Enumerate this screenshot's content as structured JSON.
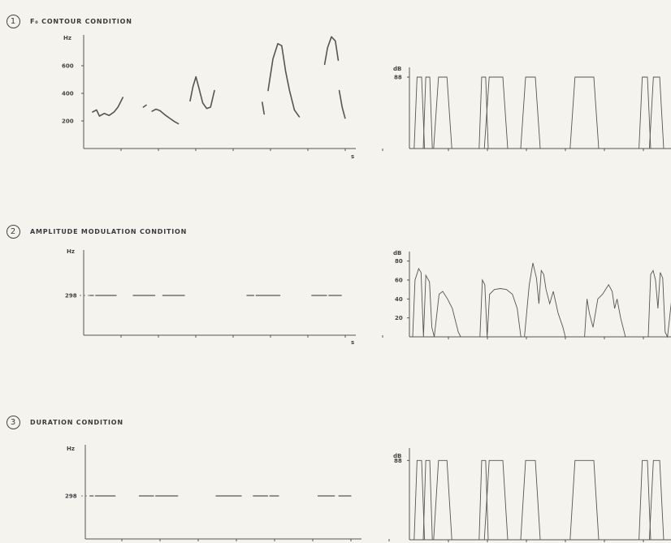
{
  "sections": [
    {
      "num": "1",
      "title": "F₀ CONTOUR CONDITION"
    },
    {
      "num": "2",
      "title": "AMPLITUDE MODULATION CONDITION"
    },
    {
      "num": "3",
      "title": "DURATION CONDITION"
    }
  ],
  "labels": {
    "hz": "Hz",
    "db": "dB",
    "s": "s"
  },
  "chart_data": [
    {
      "type": "line",
      "ylabel": "Hz",
      "xlabel": "s",
      "yticks": [
        200,
        400,
        600
      ],
      "ytick_labels": [
        "200",
        "400",
        "600"
      ],
      "ylim": [
        0,
        800
      ],
      "segments": [
        {
          "x": [
            0.05,
            0.09,
            0.12,
            0.17,
            0.22,
            0.27,
            0.31,
            0.36
          ],
          "y": [
            265,
            280,
            235,
            255,
            240,
            265,
            300,
            370
          ]
        },
        {
          "x": [
            0.57,
            0.6
          ],
          "y": [
            300,
            315
          ]
        },
        {
          "x": [
            0.66,
            0.7,
            0.74,
            0.79,
            0.84,
            0.89,
            0.93
          ],
          "y": [
            270,
            285,
            275,
            245,
            220,
            195,
            180
          ]
        },
        {
          "x": [
            1.05,
            1.08,
            1.11,
            1.14,
            1.18,
            1.22,
            1.26,
            1.3
          ],
          "y": [
            345,
            450,
            520,
            440,
            330,
            290,
            300,
            420
          ]
        },
        {
          "x": [
            1.79,
            1.81
          ],
          "y": [
            335,
            250
          ]
        },
        {
          "x": [
            1.85,
            1.9,
            1.95,
            1.99,
            2.03,
            2.07,
            2.12,
            2.17
          ],
          "y": [
            420,
            650,
            760,
            745,
            560,
            420,
            280,
            230
          ]
        },
        {
          "x": [
            2.43,
            2.46,
            2.5,
            2.54,
            2.57
          ],
          "y": [
            610,
            730,
            810,
            780,
            640
          ]
        },
        {
          "x": [
            2.58,
            2.61,
            2.64
          ],
          "y": [
            420,
            300,
            220
          ]
        }
      ]
    },
    {
      "type": "area",
      "ylabel": "dB",
      "ytick_labels": [
        "88"
      ],
      "level": 88,
      "ylim": [
        0,
        100
      ],
      "pulses": [
        [
          0.03,
          0.11
        ],
        [
          0.1,
          0.17
        ],
        [
          0.18,
          0.32
        ],
        [
          0.53,
          0.6
        ],
        [
          0.57,
          0.75
        ],
        [
          0.85,
          1.0
        ],
        [
          1.23,
          1.45
        ],
        [
          1.76,
          1.85
        ],
        [
          1.84,
          1.95
        ]
      ]
    },
    {
      "type": "line",
      "ylabel": "Hz",
      "xlabel": "s",
      "level_label": "298",
      "value": 298,
      "segments": [
        [
          0.02,
          0.05
        ],
        [
          0.07,
          0.25
        ],
        [
          0.4,
          0.59
        ],
        [
          0.66,
          0.85
        ],
        [
          1.4,
          1.46
        ],
        [
          1.48,
          1.69
        ],
        [
          1.97,
          2.1
        ],
        [
          2.12,
          2.23
        ]
      ]
    },
    {
      "type": "line",
      "ylabel": "dB",
      "yticks": [
        20,
        40,
        60,
        80
      ],
      "ytick_labels": [
        "20",
        "40",
        "60",
        "80"
      ],
      "ylim": [
        0,
        90
      ],
      "segments": [
        {
          "x": [
            0.02,
            0.04,
            0.07,
            0.09,
            0.11,
            0.13,
            0.16,
            0.18,
            0.2,
            0.24,
            0.27,
            0.31,
            0.35,
            0.38,
            0.4,
            0.42
          ],
          "y": [
            0,
            60,
            72,
            68,
            0,
            65,
            58,
            10,
            0,
            45,
            48,
            40,
            30,
            15,
            5,
            0
          ]
        },
        {
          "x": [
            0.58,
            0.6,
            0.62,
            0.64,
            0.66,
            0.7,
            0.75,
            0.8,
            0.85,
            0.89,
            0.92
          ],
          "y": [
            0,
            60,
            55,
            0,
            45,
            50,
            51,
            50,
            45,
            30,
            0
          ]
        },
        {
          "x": [
            0.95,
            0.99,
            1.02,
            1.05,
            1.07,
            1.09,
            1.11,
            1.13,
            1.16,
            1.19,
            1.23,
            1.27,
            1.29
          ],
          "y": [
            0,
            55,
            78,
            62,
            35,
            70,
            66,
            50,
            35,
            48,
            25,
            10,
            0
          ]
        },
        {
          "x": [
            1.45,
            1.47,
            1.49,
            1.52,
            1.56,
            1.6,
            1.65,
            1.68,
            1.7,
            1.72,
            1.75,
            1.79
          ],
          "y": [
            0,
            40,
            25,
            10,
            40,
            45,
            55,
            48,
            30,
            40,
            20,
            0
          ]
        },
        {
          "x": [
            1.98,
            2.0,
            2.02,
            2.04,
            2.06,
            2.08,
            2.1,
            2.12,
            2.14,
            2.17,
            2.19
          ],
          "y": [
            0,
            66,
            70,
            60,
            30,
            68,
            62,
            5,
            0,
            35,
            30
          ]
        }
      ]
    },
    {
      "type": "line",
      "ylabel": "Hz",
      "level_label": "298",
      "value": 298,
      "segments": [
        [
          0.02,
          0.05
        ],
        [
          0.07,
          0.25
        ],
        [
          0.47,
          0.6
        ],
        [
          0.62,
          0.82
        ],
        [
          1.17,
          1.4
        ],
        [
          1.51,
          1.64
        ],
        [
          1.66,
          1.74
        ],
        [
          2.1,
          2.25
        ],
        [
          2.29,
          2.4
        ]
      ]
    },
    {
      "type": "area",
      "ylabel": "dB",
      "ytick_labels": [
        "88"
      ],
      "level": 88,
      "ylim": [
        0,
        100
      ],
      "pulses": [
        [
          0.03,
          0.11
        ],
        [
          0.1,
          0.17
        ],
        [
          0.18,
          0.32
        ],
        [
          0.53,
          0.6
        ],
        [
          0.57,
          0.75
        ],
        [
          0.85,
          1.0
        ],
        [
          1.23,
          1.45
        ],
        [
          1.76,
          1.85
        ],
        [
          1.84,
          1.95
        ]
      ]
    }
  ]
}
